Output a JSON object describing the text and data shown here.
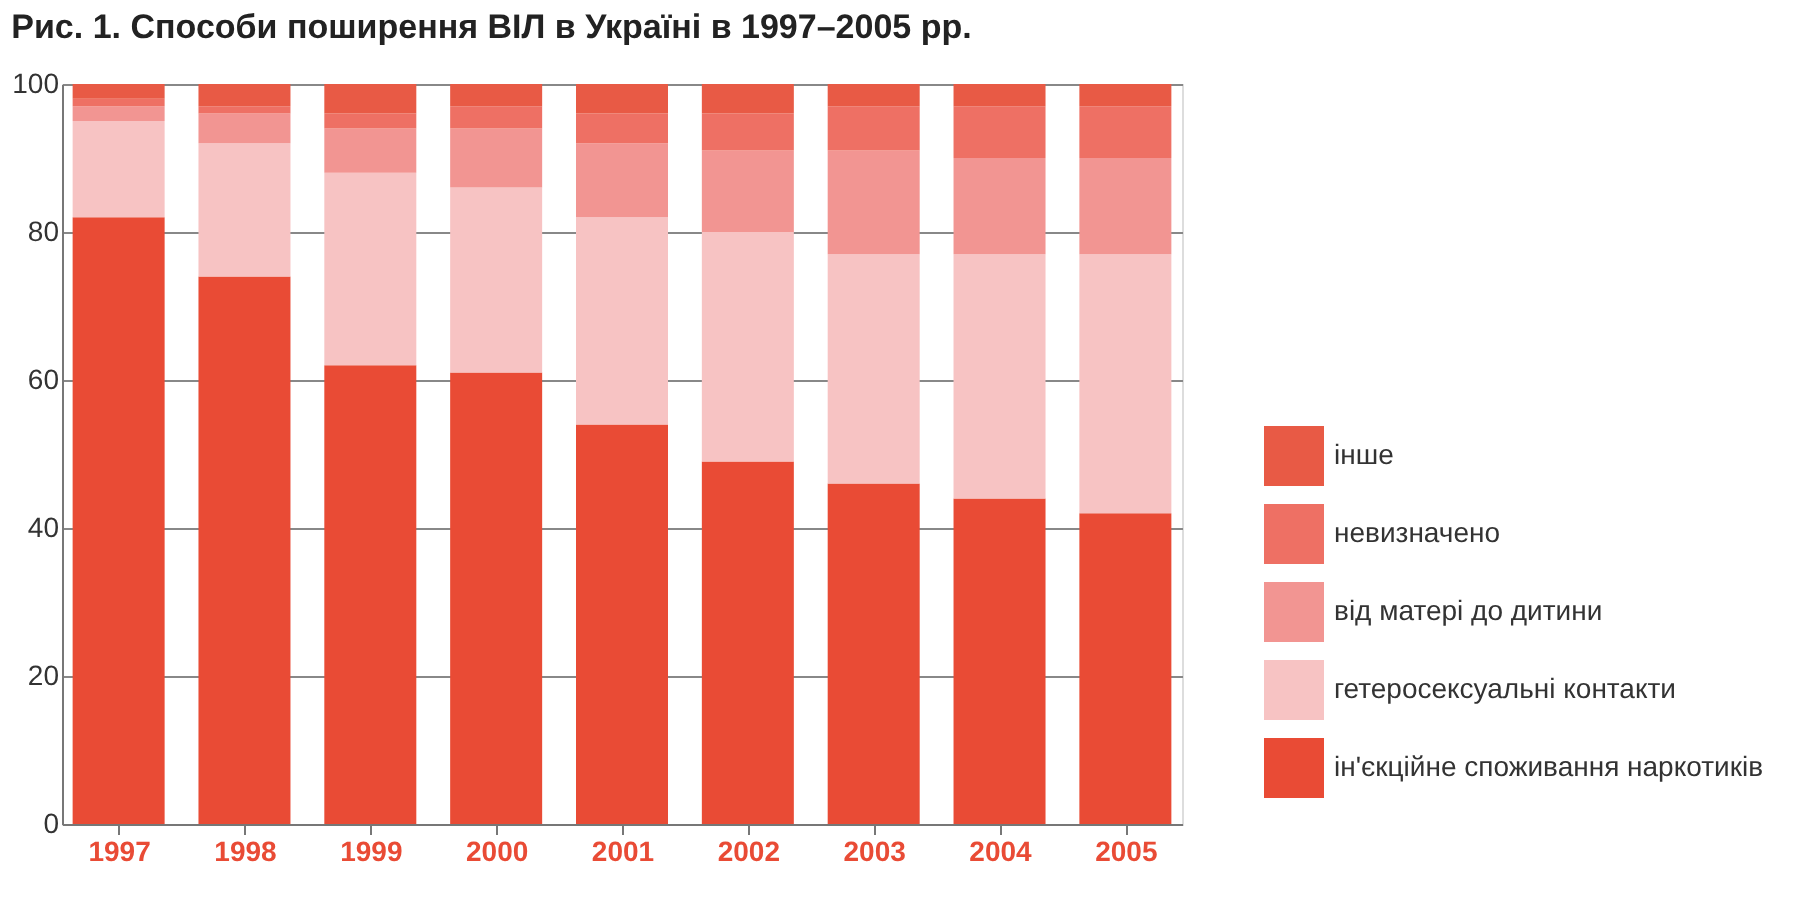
{
  "chart_data": {
    "type": "bar",
    "title": "Рис. 1. Способи поширення ВІЛ в Україні в 1997–2005 рр.",
    "stacked": true,
    "categories": [
      "1997",
      "1998",
      "1999",
      "2000",
      "2001",
      "2002",
      "2003",
      "2004",
      "2005"
    ],
    "series": [
      {
        "name": "ін'єкційне споживання наркотиків",
        "color": "#e94b35",
        "values": [
          82,
          74,
          62,
          61,
          54,
          49,
          46,
          44,
          42
        ]
      },
      {
        "name": "гетеросексуальні контакти",
        "color": "#f7c3c3",
        "values": [
          13,
          18,
          26,
          25,
          28,
          31,
          31,
          33,
          35
        ]
      },
      {
        "name": "від матері до дитини",
        "color": "#f29592",
        "values": [
          2,
          4,
          6,
          8,
          10,
          11,
          14,
          13,
          13
        ]
      },
      {
        "name": "невизначено",
        "color": "#ee7064",
        "values": [
          1,
          1,
          2,
          3,
          4,
          5,
          6,
          7,
          7
        ]
      },
      {
        "name": "інше",
        "color": "#e85a45",
        "values": [
          2,
          3,
          4,
          3,
          4,
          4,
          3,
          3,
          3
        ]
      }
    ],
    "ylim": [
      0,
      100
    ],
    "yticks": [
      0,
      20,
      40,
      60,
      80,
      100
    ],
    "grid": "y",
    "legend": "right"
  }
}
